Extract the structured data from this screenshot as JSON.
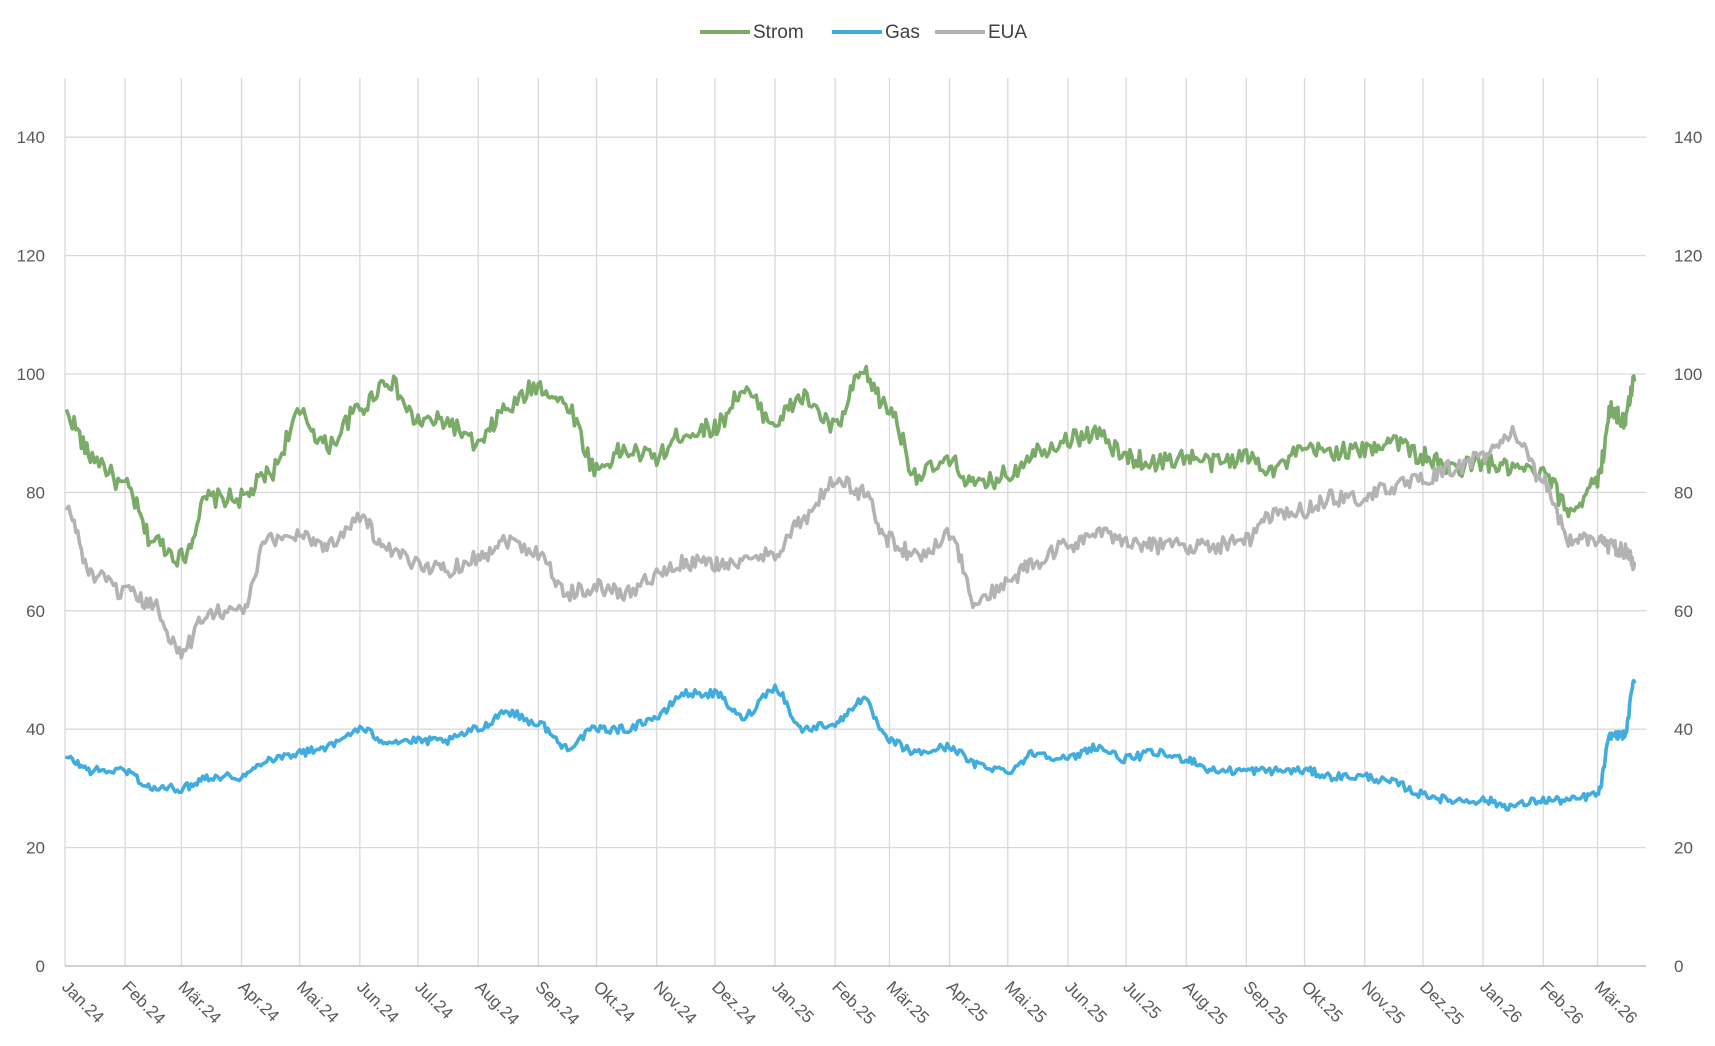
{
  "chart_data": {
    "type": "line",
    "title": "",
    "xlabel": "",
    "ylabel": "",
    "ylim": [
      0,
      150
    ],
    "yticks": [
      0,
      20,
      40,
      60,
      80,
      100,
      120,
      140
    ],
    "secondary_yticks": [
      0,
      20,
      40,
      60,
      80,
      100,
      120,
      140
    ],
    "grid": true,
    "legend_position": "top-center",
    "x_labels": [
      "Jan.24",
      "Feb.24",
      "Mär.24",
      "Apr.24",
      "Mai.24",
      "Jun.24",
      "Jul.24",
      "Aug.24",
      "Sep.24",
      "Okt.24",
      "Nov.24",
      "Dez.24",
      "Jan.25",
      "Feb.25",
      "Mär.25",
      "Apr.25",
      "Mai.25",
      "Jun.25",
      "Jul.25",
      "Aug.25",
      "Sep.25",
      "Okt.25",
      "Nov.25",
      "Dez.25",
      "Jan.26",
      "Feb.26",
      "Mär.26"
    ],
    "x": [
      "2024-01-02",
      "2024-01-15",
      "2024-02-01",
      "2024-02-15",
      "2024-03-01",
      "2024-03-15",
      "2024-04-01",
      "2024-04-15",
      "2024-05-01",
      "2024-05-15",
      "2024-06-01",
      "2024-06-15",
      "2024-07-01",
      "2024-07-15",
      "2024-08-01",
      "2024-08-15",
      "2024-09-01",
      "2024-09-15",
      "2024-10-01",
      "2024-10-15",
      "2024-11-01",
      "2024-11-15",
      "2024-12-01",
      "2024-12-15",
      "2025-01-01",
      "2025-01-15",
      "2025-02-01",
      "2025-02-15",
      "2025-03-01",
      "2025-03-15",
      "2025-04-01",
      "2025-04-15",
      "2025-05-01",
      "2025-05-15",
      "2025-06-01",
      "2025-06-15",
      "2025-07-01",
      "2025-07-15",
      "2025-08-01",
      "2025-08-15",
      "2025-09-01",
      "2025-09-15",
      "2025-10-01",
      "2025-10-15",
      "2025-11-01",
      "2025-11-15",
      "2025-12-01",
      "2025-12-15",
      "2026-01-01",
      "2026-01-15",
      "2026-02-01",
      "2026-02-15",
      "2026-03-01",
      "2026-03-08",
      "2026-03-15",
      "2026-03-20"
    ],
    "series": [
      {
        "name": "Strom",
        "color": "#7aab69",
        "values": [
          93,
          86,
          81,
          72,
          69,
          79,
          79,
          83,
          93,
          88,
          94,
          99,
          92,
          92,
          88,
          94,
          98,
          95,
          84,
          87,
          86,
          90,
          91,
          97,
          92,
          96,
          91,
          100,
          94,
          83,
          85,
          81,
          83,
          87,
          89,
          90,
          86,
          85,
          86,
          85,
          86,
          84,
          87,
          87,
          87,
          89,
          86,
          84,
          85,
          84,
          83,
          77,
          82,
          94,
          92,
          99
        ]
      },
      {
        "name": "Gas",
        "color": "#41acde",
        "values": [
          35,
          33,
          33,
          30,
          30,
          32,
          32,
          35,
          36,
          37,
          40,
          38,
          38,
          38,
          40,
          43,
          41,
          37,
          40,
          40,
          42,
          46,
          46,
          42,
          47,
          40,
          41,
          45,
          38,
          36,
          37,
          34,
          33,
          36,
          35,
          37,
          35,
          36,
          35,
          33,
          33,
          33,
          33,
          32,
          32,
          31,
          29,
          28,
          28,
          27,
          28,
          28,
          29,
          39,
          39,
          48
        ]
      },
      {
        "name": "EUA",
        "color": "#b3b3b3",
        "values": [
          77,
          66,
          63,
          61,
          53,
          60,
          60,
          72,
          73,
          71,
          76,
          70,
          68,
          67,
          69,
          72,
          70,
          63,
          64,
          63,
          66,
          68,
          68,
          68,
          70,
          75,
          82,
          80,
          72,
          69,
          73,
          61,
          65,
          68,
          71,
          73,
          72,
          71,
          71,
          71,
          72,
          76,
          77,
          79,
          79,
          81,
          82,
          84,
          86,
          90,
          82,
          72,
          72,
          71,
          70,
          68
        ]
      }
    ]
  }
}
